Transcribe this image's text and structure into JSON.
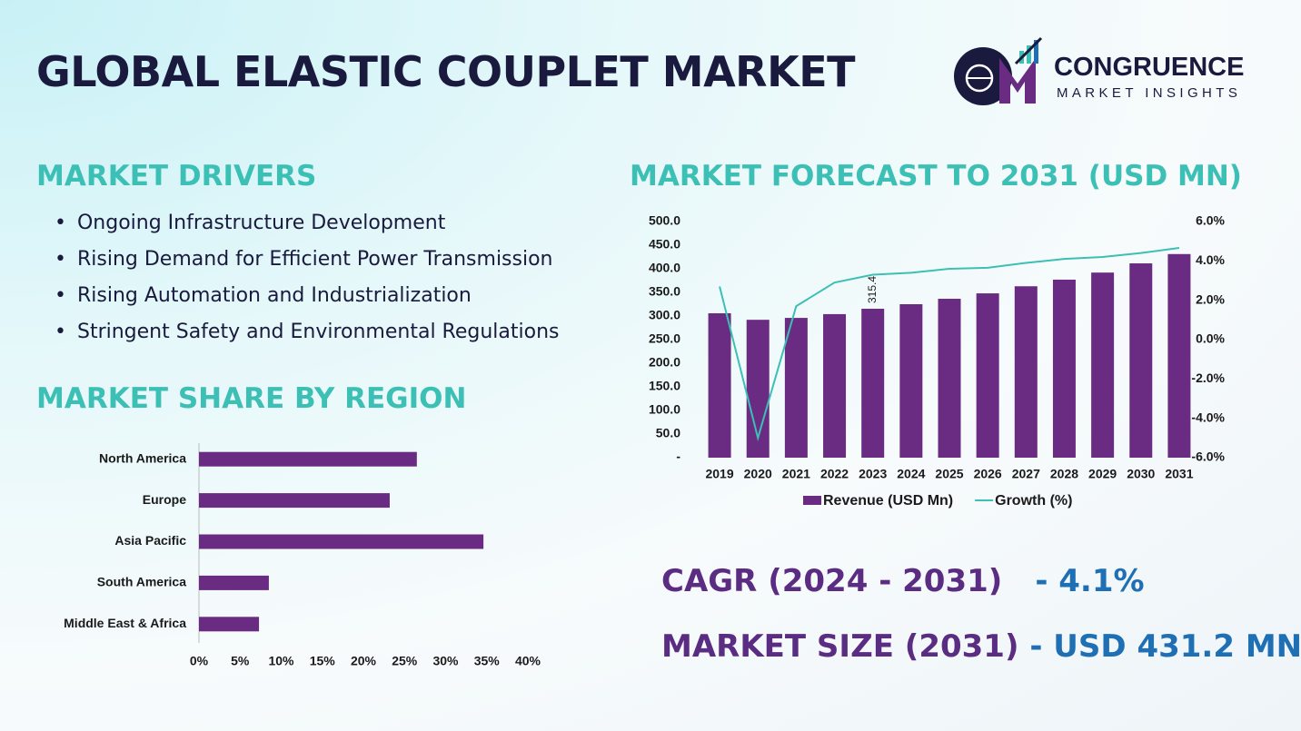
{
  "header": {
    "title": "GLOBAL ELASTIC COUPLET MARKET",
    "brand": "CONGRUENCE",
    "brand_sub": "MARKET INSIGHTS"
  },
  "drivers": {
    "heading": "MARKET DRIVERS",
    "items": [
      "Ongoing Infrastructure Development",
      "Rising Demand for Efficient Power Transmission",
      "Rising Automation and Industrialization",
      "Stringent Safety and Environmental Regulations"
    ]
  },
  "share_heading": "MARKET SHARE BY REGION",
  "forecast_heading": "MARKET FORECAST TO 2031 (USD MN)",
  "summary": {
    "cagr_label": "CAGR (2024 - 2031)",
    "cagr_value": "- 4.1%",
    "size_label": "MARKET SIZE (2031)",
    "size_value": "- USD 431.2 MN"
  },
  "chart_data": [
    {
      "type": "bar",
      "orientation": "horizontal",
      "color": "#6a2c83",
      "categories": [
        "North America",
        "Europe",
        "Asia Pacific",
        "South America",
        "Middle East & Africa"
      ],
      "values": [
        26.5,
        23.2,
        34.6,
        8.5,
        7.3
      ],
      "xlim": [
        0,
        40
      ],
      "xticks": [
        {
          "value": 0,
          "label": "0%"
        },
        {
          "value": 5,
          "label": "5%"
        },
        {
          "value": 10,
          "label": "10%"
        },
        {
          "value": 15,
          "label": "15%"
        },
        {
          "value": 20,
          "label": "20%"
        },
        {
          "value": 25,
          "label": "25%"
        },
        {
          "value": 30,
          "label": "30%"
        },
        {
          "value": 35,
          "label": "35%"
        },
        {
          "value": 40,
          "label": "40%"
        }
      ]
    },
    {
      "type": "combo",
      "categories": [
        "2019",
        "2020",
        "2021",
        "2022",
        "2023",
        "2024",
        "2025",
        "2026",
        "2027",
        "2028",
        "2029",
        "2030",
        "2031"
      ],
      "series": [
        {
          "name": "Revenue (USD Mn)",
          "type": "bar",
          "color": "#6a2c83",
          "values": [
            305.8,
            292,
            296,
            304,
            315.4,
            325,
            336.5,
            348,
            363,
            377,
            392,
            411.5,
            431.2
          ],
          "value_labels": [
            null,
            null,
            null,
            null,
            "315.4",
            null,
            null,
            null,
            null,
            null,
            null,
            null,
            null
          ]
        },
        {
          "name": "Growth (%)",
          "type": "line",
          "axis": "y2",
          "color": "#3cbfb4",
          "values": [
            2.7,
            -5.0,
            1.7,
            2.9,
            3.3,
            3.4,
            3.6,
            3.65,
            3.9,
            4.1,
            4.2,
            4.4,
            4.66
          ]
        }
      ],
      "ylim": [
        0,
        500
      ],
      "yticks": [
        {
          "value": 0,
          "label": "-"
        },
        {
          "value": 50,
          "label": "50.0"
        },
        {
          "value": 100,
          "label": "100.0"
        },
        {
          "value": 150,
          "label": "150.0"
        },
        {
          "value": 200,
          "label": "200.0"
        },
        {
          "value": 250,
          "label": "250.0"
        },
        {
          "value": 300,
          "label": "300.0"
        },
        {
          "value": 350,
          "label": "350.0"
        },
        {
          "value": 400,
          "label": "400.0"
        },
        {
          "value": 450,
          "label": "450.0"
        },
        {
          "value": 500,
          "label": "500.0"
        }
      ],
      "y2lim": [
        -6,
        6
      ],
      "y2ticks": [
        {
          "value": -6,
          "label": "-6.0%"
        },
        {
          "value": -4,
          "label": "-4.0%"
        },
        {
          "value": -2,
          "label": "-2.0%"
        },
        {
          "value": 0,
          "label": "0.0%"
        },
        {
          "value": 2,
          "label": "2.0%"
        },
        {
          "value": 4,
          "label": "4.0%"
        },
        {
          "value": 6,
          "label": "6.0%"
        }
      ],
      "legend": "bottom"
    }
  ]
}
